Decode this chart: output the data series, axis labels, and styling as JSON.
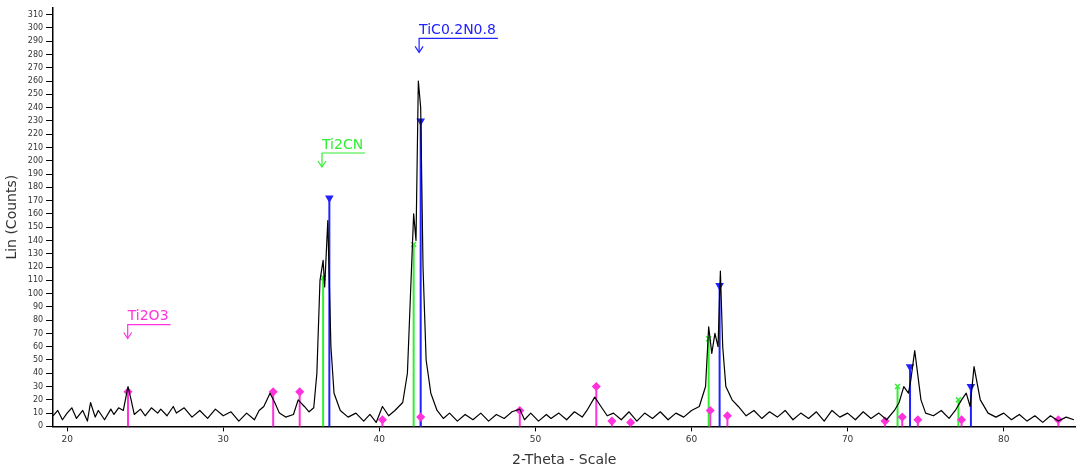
{
  "chart_data": {
    "type": "line",
    "xlabel": "2-Theta - Scale",
    "ylabel": "Lin (Counts)",
    "xlim": [
      19.1,
      84.6
    ],
    "ylim": [
      0,
      315
    ],
    "xticks": [
      20,
      30,
      40,
      50,
      60,
      70,
      80
    ],
    "yticks": [
      0,
      10,
      20,
      30,
      40,
      50,
      60,
      70,
      80,
      90,
      100,
      110,
      120,
      130,
      140,
      150,
      160,
      170,
      180,
      190,
      200,
      210,
      220,
      230,
      240,
      250,
      260,
      270,
      280,
      290,
      300,
      310
    ],
    "marker": "none",
    "line_style": "solid",
    "annotations": [
      "Ti2O3",
      "Ti2CN",
      "TiC0.2N0.8"
    ],
    "series": [
      {
        "color": "#000000",
        "x": [
          19.1,
          19.4,
          19.7,
          20,
          20.3,
          20.6,
          21,
          21.3,
          21.5,
          21.8,
          22,
          22.4,
          22.8,
          23,
          23.3,
          23.6,
          23.9,
          24.1,
          24.3,
          24.7,
          25,
          25.4,
          25.8,
          26,
          26.4,
          26.8,
          27,
          27.5,
          28,
          28.5,
          29,
          29.5,
          30,
          30.5,
          31,
          31.5,
          32,
          32.3,
          32.6,
          33,
          33.3,
          33.6,
          34,
          34.5,
          34.8,
          35.2,
          35.5,
          35.8,
          36,
          36.2,
          36.4,
          36.5,
          36.7,
          36.9,
          37.1,
          37.5,
          38,
          38.5,
          39,
          39.4,
          39.8,
          40.2,
          40.6,
          41,
          41.5,
          41.8,
          42,
          42.2,
          42.35,
          42.5,
          42.65,
          42.8,
          43,
          43.3,
          43.7,
          44.1,
          44.5,
          45,
          45.5,
          46,
          46.5,
          47,
          47.5,
          48,
          48.5,
          49,
          49.3,
          49.7,
          50.2,
          50.7,
          51,
          51.5,
          52,
          52.5,
          53,
          53.3,
          53.8,
          54.2,
          54.6,
          55,
          55.5,
          56,
          56.5,
          57,
          57.5,
          58,
          58.5,
          59,
          59.5,
          60,
          60.5,
          60.9,
          61.1,
          61.3,
          61.5,
          61.7,
          61.85,
          62,
          62.2,
          62.6,
          63,
          63.5,
          64,
          64.5,
          65,
          65.5,
          66,
          66.5,
          67,
          67.5,
          68,
          68.5,
          69,
          69.5,
          70,
          70.5,
          71,
          71.5,
          72,
          72.5,
          73,
          73.3,
          73.6,
          73.9,
          74.05,
          74.3,
          74.7,
          75,
          75.5,
          76,
          76.5,
          76.9,
          77.3,
          77.6,
          77.85,
          78.1,
          78.5,
          79,
          79.5,
          80,
          80.5,
          81,
          81.5,
          82,
          82.5,
          83,
          83.5,
          84,
          84.5
        ],
        "values": [
          8,
          12,
          5,
          10,
          14,
          6,
          12,
          4,
          18,
          7,
          12,
          5,
          13,
          9,
          14,
          12,
          30,
          20,
          9,
          13,
          8,
          14,
          10,
          13,
          8,
          15,
          10,
          14,
          7,
          12,
          6,
          13,
          8,
          11,
          4,
          10,
          5,
          12,
          15,
          25,
          18,
          10,
          7,
          9,
          20,
          15,
          11,
          14,
          40,
          110,
          125,
          105,
          155,
          60,
          25,
          12,
          7,
          10,
          4,
          9,
          3,
          15,
          8,
          12,
          18,
          40,
          100,
          160,
          140,
          260,
          240,
          120,
          50,
          25,
          12,
          6,
          10,
          4,
          9,
          5,
          10,
          4,
          9,
          6,
          11,
          13,
          5,
          10,
          4,
          9,
          6,
          10,
          5,
          11,
          7,
          12,
          22,
          15,
          8,
          10,
          5,
          11,
          4,
          10,
          6,
          11,
          5,
          10,
          7,
          12,
          15,
          30,
          75,
          55,
          70,
          60,
          117,
          60,
          30,
          20,
          15,
          8,
          12,
          6,
          11,
          7,
          12,
          5,
          10,
          6,
          11,
          4,
          12,
          7,
          10,
          5,
          11,
          6,
          10,
          5,
          12,
          18,
          30,
          25,
          35,
          57,
          20,
          10,
          8,
          12,
          6,
          12,
          20,
          25,
          15,
          45,
          20,
          10,
          7,
          10,
          5,
          9,
          4,
          8,
          3,
          8,
          4,
          7,
          5
        ]
      },
      {
        "type": "lollipop",
        "color": "#ff33dd",
        "marker": "diamond",
        "x": [
          23.9,
          33.2,
          34.9,
          40.2,
          42.65,
          49.0,
          53.9,
          54.9,
          56.1,
          61.2,
          62.3,
          72.4,
          73.5,
          74.5,
          77.3,
          83.5
        ],
        "values": [
          26,
          26,
          26,
          5,
          7,
          12,
          30,
          4,
          3,
          12,
          8,
          4,
          7,
          5,
          5,
          5
        ]
      },
      {
        "type": "lollipop",
        "color": "#33ee33",
        "marker": "cross",
        "x": [
          36.4,
          42.2,
          61.1,
          73.2,
          77.1
        ],
        "values": [
          112,
          137,
          66,
          30,
          20
        ]
      },
      {
        "type": "lollipop",
        "color": "#2222ff",
        "marker": "triangle",
        "x": [
          36.8,
          42.65,
          61.8,
          74.0,
          77.9
        ],
        "values": [
          172,
          230,
          106,
          45,
          30
        ]
      }
    ]
  }
}
